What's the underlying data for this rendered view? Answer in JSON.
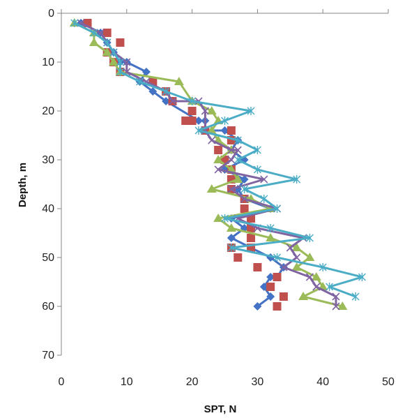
{
  "chart_data": {
    "type": "scatter",
    "title": "",
    "xlabel": "SPT, N",
    "ylabel": "Depth, m",
    "xlim": [
      0,
      50
    ],
    "ylim": [
      0,
      70
    ],
    "y_inverted": true,
    "x_axis_position": "top",
    "grid": false,
    "legend": "none",
    "x_ticks": [
      "0",
      "10",
      "20",
      "30",
      "40",
      "50"
    ],
    "y_ticks": [
      "0",
      "10",
      "20",
      "30",
      "40",
      "50",
      "60",
      "70"
    ],
    "series": [
      {
        "marker": "diamond",
        "color": "#4472C4",
        "line": true,
        "points": [
          [
            3,
            2
          ],
          [
            6,
            4
          ],
          [
            7,
            6
          ],
          [
            8,
            8
          ],
          [
            9,
            10
          ],
          [
            10,
            10
          ],
          [
            13,
            12
          ],
          [
            12,
            14
          ],
          [
            14,
            16
          ],
          [
            16,
            18
          ],
          [
            21,
            22
          ],
          [
            22,
            22
          ],
          [
            22,
            24
          ],
          [
            25,
            24
          ],
          [
            27,
            26
          ],
          [
            26,
            28
          ],
          [
            28,
            30
          ],
          [
            25,
            32
          ],
          [
            28,
            34
          ],
          [
            27,
            36
          ],
          [
            28,
            38
          ],
          [
            32,
            40
          ],
          [
            26,
            42
          ],
          [
            28,
            44
          ],
          [
            26,
            46
          ],
          [
            29,
            48
          ],
          [
            32,
            50
          ],
          [
            34,
            52
          ],
          [
            33,
            54
          ],
          [
            32,
            54
          ],
          [
            31,
            56
          ],
          [
            32,
            58
          ],
          [
            30,
            60
          ]
        ]
      },
      {
        "marker": "square",
        "color": "#C0504D",
        "line": false,
        "points": [
          [
            4,
            2
          ],
          [
            7,
            4
          ],
          [
            9,
            6
          ],
          [
            7,
            8
          ],
          [
            8,
            10
          ],
          [
            9,
            12
          ],
          [
            14,
            14
          ],
          [
            16,
            16
          ],
          [
            17,
            18
          ],
          [
            20,
            20
          ],
          [
            20,
            22
          ],
          [
            19,
            22
          ],
          [
            22,
            24
          ],
          [
            26,
            24
          ],
          [
            26,
            26
          ],
          [
            24,
            28
          ],
          [
            25,
            30
          ],
          [
            26,
            32
          ],
          [
            26,
            34
          ],
          [
            26,
            36
          ],
          [
            28,
            38
          ],
          [
            28,
            40
          ],
          [
            29,
            42
          ],
          [
            29,
            44
          ],
          [
            29,
            46
          ],
          [
            29,
            48
          ],
          [
            26,
            48
          ],
          [
            27,
            50
          ],
          [
            30,
            52
          ],
          [
            33,
            54
          ],
          [
            32,
            56
          ],
          [
            34,
            58
          ],
          [
            33,
            60
          ]
        ]
      },
      {
        "marker": "triangle",
        "color": "#9BBB59",
        "line": true,
        "points": [
          [
            2,
            2
          ],
          [
            5,
            4
          ],
          [
            5,
            6
          ],
          [
            7,
            8
          ],
          [
            8,
            10
          ],
          [
            9,
            12
          ],
          [
            18,
            14
          ],
          [
            20,
            18
          ],
          [
            23,
            20
          ],
          [
            24,
            22
          ],
          [
            23,
            24
          ],
          [
            24,
            26
          ],
          [
            26,
            28
          ],
          [
            24,
            30
          ],
          [
            26,
            32
          ],
          [
            27,
            34
          ],
          [
            23,
            36
          ],
          [
            29,
            38
          ],
          [
            32,
            40
          ],
          [
            24,
            42
          ],
          [
            26,
            44
          ],
          [
            32,
            46
          ],
          [
            36,
            48
          ],
          [
            38,
            50
          ],
          [
            36,
            52
          ],
          [
            39,
            54
          ],
          [
            40,
            56
          ],
          [
            37,
            58
          ],
          [
            43,
            60
          ]
        ]
      },
      {
        "marker": "x",
        "color": "#8064A2",
        "line": true,
        "points": [
          [
            3,
            2
          ],
          [
            6,
            4
          ],
          [
            7,
            6
          ],
          [
            8,
            8
          ],
          [
            10,
            10
          ],
          [
            10,
            12
          ],
          [
            13,
            14
          ],
          [
            16,
            16
          ],
          [
            17,
            18
          ],
          [
            21,
            18
          ],
          [
            22,
            20
          ],
          [
            22,
            24
          ],
          [
            23,
            26
          ],
          [
            26,
            28
          ],
          [
            27,
            28
          ],
          [
            26,
            30
          ],
          [
            24,
            32
          ],
          [
            31,
            34
          ],
          [
            26,
            36
          ],
          [
            28,
            38
          ],
          [
            33,
            40
          ],
          [
            27,
            42
          ],
          [
            30,
            44
          ],
          [
            37,
            46
          ],
          [
            35,
            48
          ],
          [
            36,
            50
          ],
          [
            34,
            52
          ],
          [
            38,
            54
          ],
          [
            39,
            56
          ],
          [
            42,
            58
          ],
          [
            42,
            60
          ]
        ]
      },
      {
        "marker": "star",
        "color": "#4BACC6",
        "line": true,
        "points": [
          [
            2,
            2
          ],
          [
            5,
            4
          ],
          [
            7,
            6
          ],
          [
            8,
            8
          ],
          [
            9,
            10
          ],
          [
            9,
            12
          ],
          [
            12,
            14
          ],
          [
            16,
            16
          ],
          [
            20,
            18
          ],
          [
            29,
            20
          ],
          [
            25,
            22
          ],
          [
            21,
            24
          ],
          [
            27,
            26
          ],
          [
            30,
            28
          ],
          [
            27,
            30
          ],
          [
            30,
            32
          ],
          [
            36,
            34
          ],
          [
            28,
            36
          ],
          [
            31,
            38
          ],
          [
            33,
            40
          ],
          [
            25,
            42
          ],
          [
            32,
            44
          ],
          [
            38,
            46
          ],
          [
            26,
            48
          ],
          [
            33,
            50
          ],
          [
            40,
            52
          ],
          [
            46,
            54
          ],
          [
            41,
            56
          ],
          [
            45,
            58
          ]
        ]
      }
    ]
  }
}
